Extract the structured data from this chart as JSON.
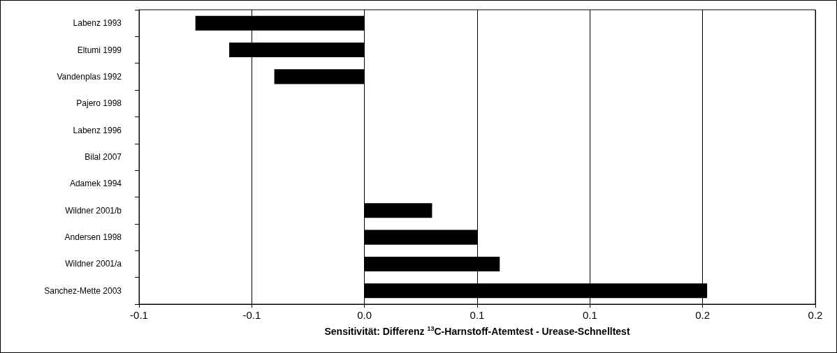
{
  "chart_data": {
    "type": "bar",
    "orientation": "horizontal",
    "xlabel": "Sensitivität: Differenz $^{13}$C-Harnstoff-Atemtest - Urease-Schnelltest",
    "categories": [
      "Labenz 1993",
      "Eltumi 1999",
      "Vandenplas 1992",
      "Pajero 1998",
      "Labenz 1996",
      "Bilal 2007",
      "Adamek 1994",
      "Wildner 2001/b",
      "Andersen 1998",
      "Wildner 2001/a",
      "Sanchez-Mette 2003"
    ],
    "values": [
      -0.075,
      -0.06,
      -0.04,
      0,
      0,
      0,
      0,
      0.03,
      0.05,
      0.06,
      0.152
    ],
    "color": "#000000",
    "xlim": [
      -0.1,
      0.2
    ],
    "xticks": [
      {
        "value": -0.1,
        "label": "-0.1"
      },
      {
        "value": -0.05,
        "label": "-0.1"
      },
      {
        "value": 0,
        "label": "0.0"
      },
      {
        "value": 0.05,
        "label": "0.1"
      },
      {
        "value": 0.1,
        "label": "0.1"
      },
      {
        "value": 0.15,
        "label": "0.2"
      },
      {
        "value": 0.2,
        "label": "0.2"
      }
    ],
    "grid": "x"
  }
}
